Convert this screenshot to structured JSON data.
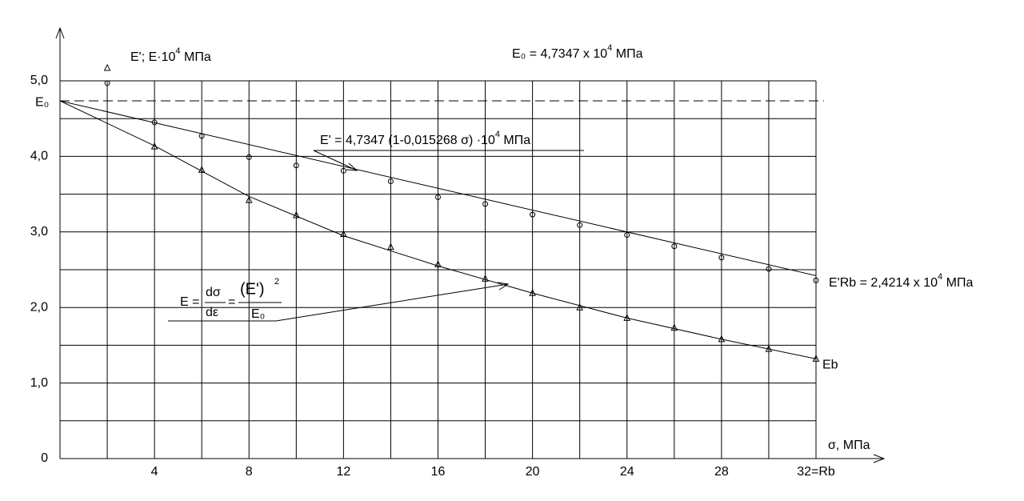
{
  "chart_data": {
    "type": "line",
    "y_label": {
      "main": "E'; E·10",
      "exp": "4",
      "unit": " МПа"
    },
    "x_label": "σ, МПа",
    "xlim": [
      0,
      32
    ],
    "ylim": [
      0,
      5
    ],
    "xticks": [
      4,
      8,
      12,
      16,
      20,
      24,
      28,
      {
        "value": 32,
        "label": "32=Rb"
      }
    ],
    "yticks": [
      0,
      {
        "value": 1,
        "label": "1,0"
      },
      {
        "value": 2,
        "label": "2,0"
      },
      {
        "value": 3,
        "label": "3,0"
      },
      {
        "value": 4,
        "label": "4,0"
      },
      {
        "value": 5,
        "label": "5,0"
      }
    ],
    "xgrid": [
      2,
      4,
      6,
      8,
      10,
      12,
      14,
      16,
      18,
      20,
      22,
      24,
      26,
      28,
      30,
      32
    ],
    "ygrid": [
      0.5,
      1,
      1.5,
      2,
      2.5,
      3,
      3.5,
      4,
      4.5,
      5
    ],
    "grid": true,
    "reference_line": {
      "value": 4.7347,
      "label": "E₀",
      "style": "dashed"
    },
    "series": [
      {
        "marker": "none",
        "color": "#000000",
        "x": [
          0,
          32
        ],
        "values": [
          4.7347,
          2.4214
        ]
      },
      {
        "marker": "none",
        "color": "#000000",
        "x": [
          0,
          4,
          8,
          12,
          16,
          20,
          24,
          28,
          32
        ],
        "values": [
          4.7347,
          4.14,
          3.47,
          2.95,
          2.55,
          2.19,
          1.86,
          1.58,
          1.32
        ],
        "end_label": "Eb"
      },
      {
        "marker": "circle",
        "color": "#000000",
        "x": [
          2,
          4,
          6,
          8,
          10,
          12,
          14,
          16,
          18,
          20,
          22,
          24,
          26,
          28,
          30,
          32
        ],
        "values": [
          4.97,
          4.45,
          4.27,
          3.99,
          3.88,
          3.81,
          3.67,
          3.46,
          3.37,
          3.23,
          3.09,
          2.96,
          2.81,
          2.66,
          2.51,
          2.36
        ]
      },
      {
        "marker": "triangle",
        "color": "#000000",
        "x": [
          2,
          4,
          6,
          8,
          10,
          12,
          14,
          16,
          18,
          20,
          22,
          24,
          26,
          28,
          30,
          32
        ],
        "values": [
          5.17,
          4.13,
          3.82,
          3.42,
          3.22,
          2.97,
          2.8,
          2.57,
          2.38,
          2.19,
          2.0,
          1.86,
          1.73,
          1.58,
          1.45,
          1.32
        ]
      }
    ],
    "annotations": {
      "e0": {
        "main": "E₀ = 4,7347 x 10",
        "exp": "4",
        "unit": " МПа"
      },
      "e_prime": {
        "main": "E' = 4,7347 (1-0,015268  σ) ·10",
        "exp": "4",
        "unit": " МПа"
      },
      "e_rb": {
        "main": "E'Rb = 2,4214  x 10",
        "exp": "4",
        "unit": " МПа"
      },
      "formula": {
        "lhs": "E =",
        "num": "dσ",
        "den": "dε",
        "eq": "=",
        "num2": "(E')",
        "exp": "2",
        "den2": "E₀"
      }
    }
  }
}
